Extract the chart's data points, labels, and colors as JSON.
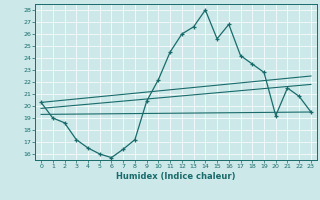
{
  "title": "",
  "xlabel": "Humidex (Indice chaleur)",
  "background_color": "#cce8e8",
  "line_color": "#1a6b6b",
  "grid_color": "#ffffff",
  "xlim": [
    -0.5,
    23.5
  ],
  "ylim": [
    15.5,
    28.5
  ],
  "xticks": [
    0,
    1,
    2,
    3,
    4,
    5,
    6,
    7,
    8,
    9,
    10,
    11,
    12,
    13,
    14,
    15,
    16,
    17,
    18,
    19,
    20,
    21,
    22,
    23
  ],
  "yticks": [
    16,
    17,
    18,
    19,
    20,
    21,
    22,
    23,
    24,
    25,
    26,
    27,
    28
  ],
  "main_x": [
    0,
    1,
    2,
    3,
    4,
    5,
    6,
    7,
    8,
    9,
    10,
    11,
    12,
    13,
    14,
    15,
    16,
    17,
    18,
    19,
    20,
    21,
    22,
    23
  ],
  "main_y": [
    20.3,
    19.0,
    18.6,
    17.2,
    16.5,
    16.0,
    15.7,
    16.4,
    17.2,
    20.4,
    22.2,
    24.5,
    26.0,
    26.6,
    28.0,
    25.6,
    26.8,
    24.2,
    23.5,
    22.8,
    19.2,
    21.5,
    20.8,
    19.5
  ],
  "line1_x": [
    0,
    23
  ],
  "line1_y": [
    20.3,
    22.5
  ],
  "line2_x": [
    0,
    23
  ],
  "line2_y": [
    19.8,
    21.8
  ],
  "line3_x": [
    0,
    23
  ],
  "line3_y": [
    19.3,
    19.5
  ]
}
